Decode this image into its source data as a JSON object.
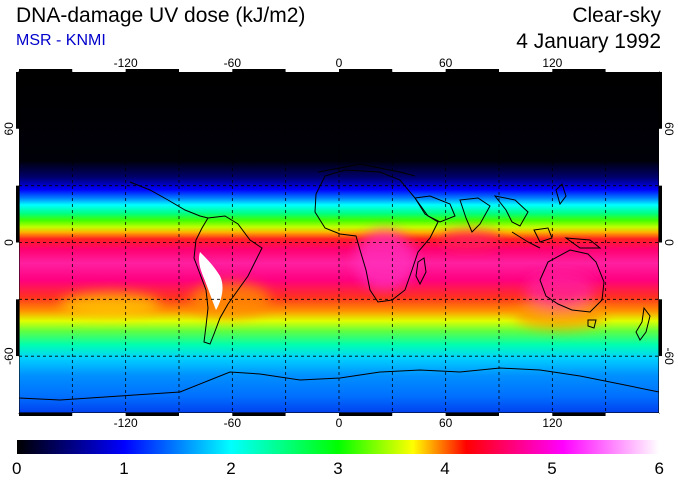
{
  "header": {
    "title": "DNA-damage UV dose (kJ/m2)",
    "source": "MSR - KNMI",
    "mode": "Clear-sky",
    "date": "4 January 1992"
  },
  "map": {
    "longitude_ticks": [
      "-120",
      "-60",
      "0",
      "60",
      "120"
    ],
    "longitude_values": [
      -120,
      -60,
      0,
      60,
      120
    ],
    "latitude_ticks": [
      "60",
      "0",
      "-60"
    ],
    "latitude_values": [
      60,
      0,
      -60
    ],
    "lon_range": [
      -180,
      180
    ],
    "lat_range": [
      -90,
      90
    ]
  },
  "colorbar": {
    "labels": [
      "0",
      "1",
      "2",
      "3",
      "4",
      "5",
      "6"
    ],
    "range": [
      0,
      6
    ],
    "colors": [
      "#000000",
      "#0000ff",
      "#00ffff",
      "#00ff00",
      "#ffff00",
      "#ff0000",
      "#ff00ff",
      "#ffffff"
    ]
  }
}
